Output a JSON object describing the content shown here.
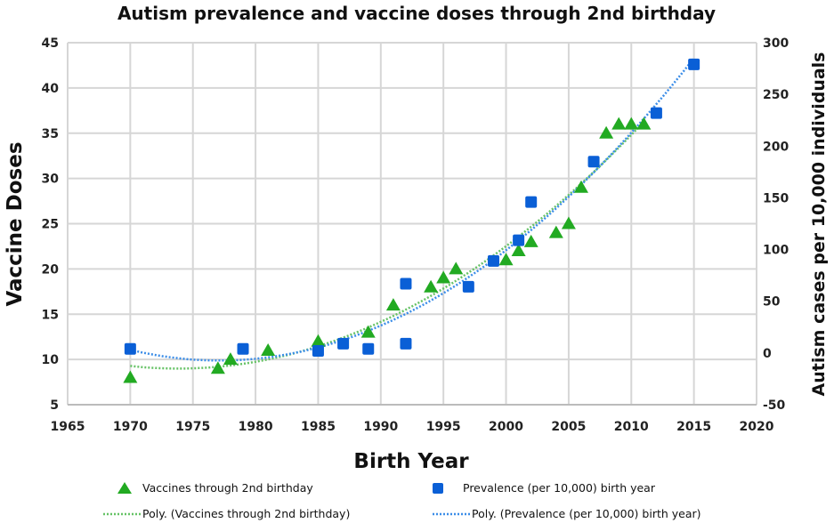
{
  "chart_data": {
    "type": "scatter",
    "title": "Autism prevalence and vaccine doses through 2nd birthday",
    "xlabel": "Birth Year",
    "ylabel": "Vaccine Doses",
    "y2label": "Autism cases per 10,000 individuals",
    "xlim": [
      1965,
      2020
    ],
    "ylim": [
      5,
      45
    ],
    "y2lim": [
      -50,
      300
    ],
    "xticks": [
      1965,
      1970,
      1975,
      1980,
      1985,
      1990,
      1995,
      2000,
      2005,
      2010,
      2015,
      2020
    ],
    "yticks": [
      5,
      10,
      15,
      20,
      25,
      30,
      35,
      40,
      45
    ],
    "y2ticks": [
      -50,
      0,
      50,
      100,
      150,
      200,
      250,
      300
    ],
    "grid": true,
    "legend_position": "bottom",
    "series": [
      {
        "name": "Vaccines through 2nd birthday",
        "axis": "left",
        "marker": "triangle",
        "color": "#22aa22",
        "x": [
          1970,
          1977,
          1978,
          1981,
          1985,
          1989,
          1991,
          1994,
          1995,
          1996,
          2000,
          2001,
          2002,
          2004,
          2005,
          2006,
          2008,
          2009,
          2010,
          2011
        ],
        "y": [
          8,
          9,
          10,
          11,
          12,
          13,
          16,
          18,
          19,
          20,
          21,
          22,
          23,
          24,
          25,
          29,
          35,
          36,
          36,
          36
        ]
      },
      {
        "name": "Prevalence (per 10,000) birth year",
        "axis": "right",
        "marker": "square",
        "color": "#0a5fd6",
        "x": [
          1970,
          1979,
          1985,
          1987,
          1989,
          1992,
          1992,
          1997,
          1999,
          2001,
          2002,
          2007,
          2012,
          2015
        ],
        "y": [
          4,
          4,
          2,
          9,
          4,
          9,
          67,
          64,
          89,
          109,
          146,
          185,
          232,
          279
        ]
      }
    ],
    "trendlines": [
      {
        "name": "Poly. (Vaccines through 2nd birthday)",
        "of": 0,
        "type": "polynomial",
        "order": 2,
        "color": "#66c266"
      },
      {
        "name": "Poly. (Prevalence (per 10,000) birth year)",
        "of": 1,
        "type": "polynomial",
        "order": 2,
        "color": "#3b8de8"
      }
    ]
  }
}
